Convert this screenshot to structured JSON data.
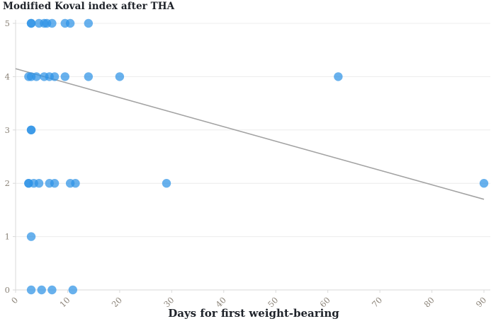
{
  "chart_data": {
    "type": "scatter",
    "title": "Modified Koval index after THA",
    "xlabel": "Days for first weight-bearing",
    "ylabel": "",
    "xlim": [
      0,
      90
    ],
    "ylim": [
      0,
      5
    ],
    "x_ticks": [
      0,
      10,
      20,
      30,
      40,
      50,
      60,
      70,
      80,
      90
    ],
    "y_ticks": [
      0,
      1,
      2,
      3,
      4,
      5
    ],
    "grid": "horizontal",
    "legend": "none",
    "points": [
      {
        "x": 3,
        "y": 5
      },
      {
        "x": 3,
        "y": 5
      },
      {
        "x": 4.5,
        "y": 5
      },
      {
        "x": 5.5,
        "y": 5
      },
      {
        "x": 6,
        "y": 5
      },
      {
        "x": 7,
        "y": 5
      },
      {
        "x": 9.5,
        "y": 5
      },
      {
        "x": 10.5,
        "y": 5
      },
      {
        "x": 14,
        "y": 5
      },
      {
        "x": 2.5,
        "y": 4
      },
      {
        "x": 3,
        "y": 4
      },
      {
        "x": 4,
        "y": 4
      },
      {
        "x": 5.5,
        "y": 4
      },
      {
        "x": 6.5,
        "y": 4
      },
      {
        "x": 7.5,
        "y": 4
      },
      {
        "x": 9.5,
        "y": 4
      },
      {
        "x": 14,
        "y": 4
      },
      {
        "x": 20,
        "y": 4
      },
      {
        "x": 62,
        "y": 4
      },
      {
        "x": 3,
        "y": 3
      },
      {
        "x": 3,
        "y": 3
      },
      {
        "x": 2.5,
        "y": 2
      },
      {
        "x": 2.5,
        "y": 2
      },
      {
        "x": 3.5,
        "y": 2
      },
      {
        "x": 4.5,
        "y": 2
      },
      {
        "x": 6.5,
        "y": 2
      },
      {
        "x": 7.5,
        "y": 2
      },
      {
        "x": 10.5,
        "y": 2
      },
      {
        "x": 11.5,
        "y": 2
      },
      {
        "x": 29,
        "y": 2
      },
      {
        "x": 90,
        "y": 2
      },
      {
        "x": 3,
        "y": 1
      },
      {
        "x": 3,
        "y": 0
      },
      {
        "x": 5,
        "y": 0
      },
      {
        "x": 7,
        "y": 0
      },
      {
        "x": 11,
        "y": 0
      }
    ],
    "trendline": {
      "x1": 0,
      "y1": 4.15,
      "x2": 90,
      "y2": 1.7
    },
    "colors": {
      "point": "#2e93e6",
      "trend": "#a3a3a3",
      "grid": "#ececec",
      "axis": "#d9d9d9",
      "tick_label": "#8b8378",
      "title": "#20242b"
    }
  }
}
